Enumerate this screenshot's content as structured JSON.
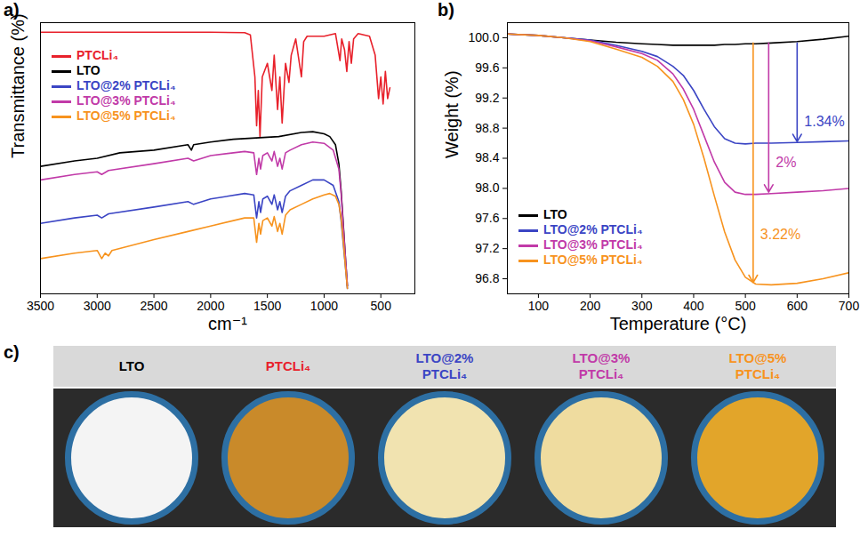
{
  "chart_data": [
    {
      "type": "line",
      "panel": "a)",
      "xlabel": "cm⁻¹",
      "ylabel": "Transmittance (%)",
      "xlim": [
        3500,
        200
      ],
      "xticks": [
        3500,
        3000,
        2500,
        2000,
        1500,
        1000,
        500
      ],
      "ylim": [
        0,
        100
      ],
      "tick_labels": "x",
      "grid": false,
      "legend": "upper left",
      "series": [
        {
          "name": "PTCLi₄",
          "color": "#e8212b",
          "x": [
            3500,
            2000,
            1700,
            1650,
            1610,
            1595,
            1580,
            1565,
            1545,
            1500,
            1460,
            1440,
            1410,
            1390,
            1370,
            1340,
            1310,
            1290,
            1250,
            1200,
            1180,
            1150,
            1000,
            900,
            860,
            845,
            820,
            800,
            780,
            760,
            740,
            700,
            600,
            550,
            520,
            500,
            480,
            460,
            440,
            420
          ],
          "values": [
            96.5,
            96.5,
            96.3,
            95.5,
            80,
            62,
            75,
            58,
            80,
            85,
            75,
            88,
            68,
            80,
            63,
            85,
            78,
            88,
            94,
            80,
            93,
            95,
            95,
            96,
            86,
            94,
            90,
            82,
            93,
            85,
            94,
            96,
            95,
            88,
            72,
            80,
            70,
            82,
            72,
            76
          ]
        },
        {
          "name": "LTO",
          "color": "#000000",
          "x": [
            3500,
            3200,
            3000,
            2800,
            2500,
            2200,
            2170,
            2150,
            2000,
            1800,
            1600,
            1400,
            1200,
            1100,
            1000,
            950,
            900,
            870,
            850,
            830,
            810,
            795
          ],
          "values": [
            47,
            49,
            50,
            52,
            53,
            55,
            53,
            55,
            56,
            57,
            57.5,
            58,
            59.5,
            59.8,
            59,
            58,
            55,
            48,
            38,
            25,
            12,
            3
          ]
        },
        {
          "name": "LTO@2% PTCLi₄",
          "color": "#3b45c4",
          "x": [
            3500,
            3200,
            3000,
            2960,
            2900,
            2500,
            2200,
            2150,
            2000,
            1700,
            1620,
            1595,
            1575,
            1560,
            1540,
            1500,
            1460,
            1440,
            1410,
            1390,
            1370,
            1340,
            1300,
            1200,
            1100,
            1000,
            920,
            870,
            850,
            830,
            810,
            795
          ],
          "values": [
            26,
            28,
            29,
            28,
            29.5,
            32,
            34,
            33,
            35,
            37,
            36.5,
            28,
            34,
            30,
            35,
            36,
            33,
            36.5,
            31,
            34,
            30,
            36,
            38,
            40,
            42,
            42,
            40,
            34,
            27,
            18,
            9,
            2
          ]
        },
        {
          "name": "LTO@3% PTCLi₄",
          "color": "#c13aa8",
          "x": [
            3500,
            3200,
            3000,
            2960,
            2900,
            2500,
            2200,
            2150,
            2000,
            1700,
            1620,
            1595,
            1575,
            1560,
            1540,
            1500,
            1460,
            1440,
            1410,
            1390,
            1370,
            1340,
            1300,
            1200,
            1100,
            1000,
            920,
            870,
            850,
            830,
            810,
            795
          ],
          "values": [
            42,
            44,
            45,
            44,
            45.5,
            48,
            50,
            49,
            51,
            52.5,
            52,
            44,
            50,
            46,
            51,
            52,
            49,
            52.5,
            47,
            50,
            46,
            52,
            53,
            55,
            56,
            55.5,
            53,
            46,
            37,
            24,
            12,
            3
          ]
        },
        {
          "name": "LTO@5% PTCLi₄",
          "color": "#f7931e",
          "x": [
            3500,
            3200,
            3000,
            2960,
            2930,
            2900,
            2870,
            2500,
            2200,
            2000,
            1700,
            1620,
            1595,
            1575,
            1560,
            1540,
            1500,
            1460,
            1440,
            1410,
            1390,
            1370,
            1340,
            1300,
            1200,
            1100,
            1000,
            950,
            900,
            870,
            850,
            830,
            810,
            795
          ],
          "values": [
            13,
            15,
            16,
            13,
            15,
            14,
            16,
            20,
            23,
            25,
            28,
            28,
            19,
            26,
            22,
            27,
            28,
            25,
            28.5,
            23,
            26,
            22,
            29,
            31,
            33,
            35,
            36.5,
            37,
            36,
            33,
            28,
            19,
            9,
            2
          ]
        }
      ]
    },
    {
      "type": "line",
      "panel": "b)",
      "xlabel": "Temperature (°C)",
      "ylabel": "Weight (%)",
      "xlim": [
        40,
        700
      ],
      "xticks": [
        100,
        200,
        300,
        400,
        500,
        600,
        700
      ],
      "ylim": [
        96.6,
        100.2
      ],
      "yticks": [
        {
          "value": 100,
          "label": "100.0"
        },
        99.6,
        99.2,
        98.8,
        98.4,
        {
          "value": 98,
          "label": "98.0"
        },
        97.6,
        97.2,
        96.8
      ],
      "grid": false,
      "legend": "lower left",
      "series": [
        {
          "name": "LTO",
          "color": "#000000",
          "x": [
            40,
            100,
            150,
            200,
            250,
            300,
            330,
            360,
            380,
            400,
            420,
            440,
            460,
            480,
            500,
            520,
            550,
            600,
            650,
            700
          ],
          "values": [
            100.05,
            100.03,
            100.0,
            99.97,
            99.94,
            99.92,
            99.91,
            99.9,
            99.9,
            99.9,
            99.9,
            99.9,
            99.91,
            99.91,
            99.92,
            99.92,
            99.93,
            99.95,
            99.98,
            100.02
          ]
        },
        {
          "name": "LTO@2% PTCLi₄",
          "color": "#3b45c4",
          "x": [
            40,
            100,
            150,
            200,
            250,
            300,
            330,
            360,
            380,
            400,
            420,
            440,
            460,
            480,
            500,
            520,
            550,
            600,
            650,
            700
          ],
          "values": [
            100.05,
            100.03,
            100.0,
            99.97,
            99.9,
            99.82,
            99.75,
            99.62,
            99.5,
            99.3,
            99.05,
            98.82,
            98.66,
            98.6,
            98.59,
            98.6,
            98.6,
            98.61,
            98.62,
            98.63
          ]
        },
        {
          "name": "LTO@3% PTCLi₄",
          "color": "#c13aa8",
          "x": [
            40,
            100,
            150,
            200,
            250,
            300,
            330,
            360,
            380,
            400,
            420,
            440,
            460,
            480,
            500,
            520,
            550,
            600,
            650,
            700
          ],
          "values": [
            100.05,
            100.03,
            100.0,
            99.96,
            99.88,
            99.79,
            99.7,
            99.52,
            99.32,
            99.05,
            98.7,
            98.35,
            98.08,
            97.95,
            97.92,
            97.92,
            97.93,
            97.95,
            97.97,
            98.0
          ]
        },
        {
          "name": "LTO@5% PTCLi₄",
          "color": "#f7931e",
          "x": [
            40,
            100,
            150,
            200,
            250,
            300,
            330,
            360,
            380,
            400,
            420,
            440,
            460,
            480,
            500,
            520,
            550,
            600,
            650,
            700
          ],
          "values": [
            100.05,
            100.03,
            100.0,
            99.95,
            99.85,
            99.74,
            99.62,
            99.42,
            99.18,
            98.85,
            98.4,
            97.9,
            97.42,
            97.05,
            96.82,
            96.73,
            96.72,
            96.74,
            96.8,
            96.88
          ]
        }
      ],
      "annotations": [
        {
          "text": "1.34%",
          "color": "#3b45c4",
          "x": 600,
          "y_from": 99.93,
          "y_to": 98.62
        },
        {
          "text": "2%",
          "color": "#c13aa8",
          "x": 545,
          "y_from": 99.93,
          "y_to": 97.95
        },
        {
          "text": "3.22%",
          "color": "#f7931e",
          "x": 515,
          "y_from": 99.93,
          "y_to": 96.75
        }
      ]
    }
  ],
  "photo": {
    "panel": "c)",
    "samples": [
      {
        "name": "LTO",
        "color": "#000000",
        "powder_color": "#f4f4f4"
      },
      {
        "name": "PTCLi₄",
        "color": "#e8212b",
        "powder_color": "#c98a2a"
      },
      {
        "name": "LTO@2% PTCLi₄",
        "color": "#3b45c4",
        "powder_color": "#f1e3b0"
      },
      {
        "name": "LTO@3% PTCLi₄",
        "color": "#c13aa8",
        "powder_color": "#efdc9f"
      },
      {
        "name": "LTO@5% PTCLi₄",
        "color": "#f7931e",
        "powder_color": "#e2a52a"
      }
    ]
  }
}
